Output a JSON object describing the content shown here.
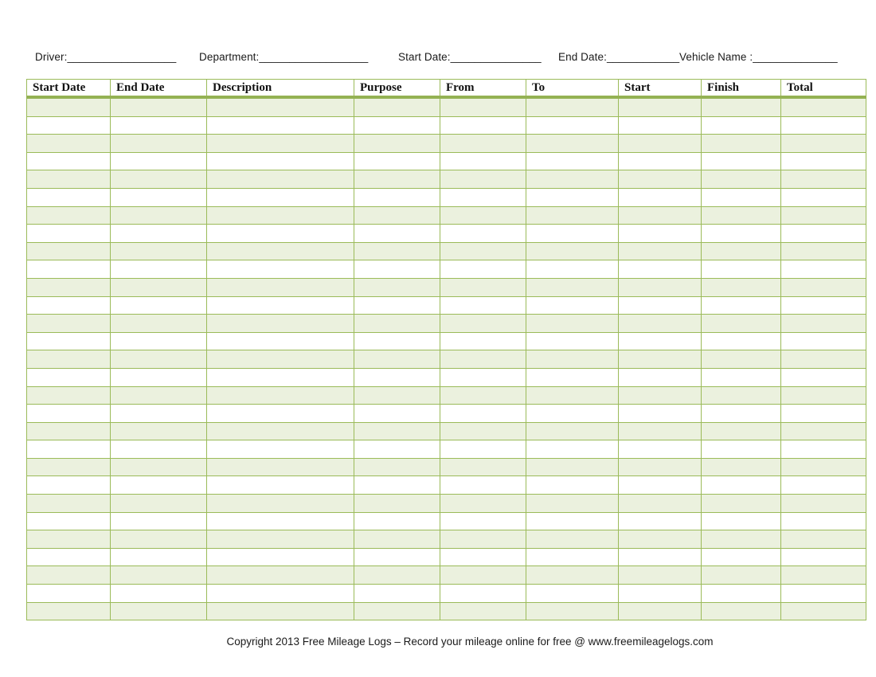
{
  "form": {
    "driver": "Driver:__________________",
    "department": "Department:__________________",
    "start_date": "Start Date:_______________",
    "end_date": "End Date:____________",
    "vehicle_name": "Vehicle Name :______________"
  },
  "table": {
    "headers": [
      "Start Date",
      "End Date",
      "Description",
      "Purpose",
      "From",
      "To",
      "Start",
      "Finish",
      "Total"
    ],
    "empty_row_count": 29,
    "rows_are_blank": true
  },
  "footer": {
    "text": "Copyright 2013 Free Mileage Logs – Record your mileage online for free @ www.freemileagelogs.com"
  },
  "colors": {
    "grid_border": "#9BBB59",
    "header_underline": "#94B253",
    "odd_row_shading": "#EBF1DE",
    "even_row_shading": "#FFFFFF",
    "text": "#1A1A1A"
  }
}
